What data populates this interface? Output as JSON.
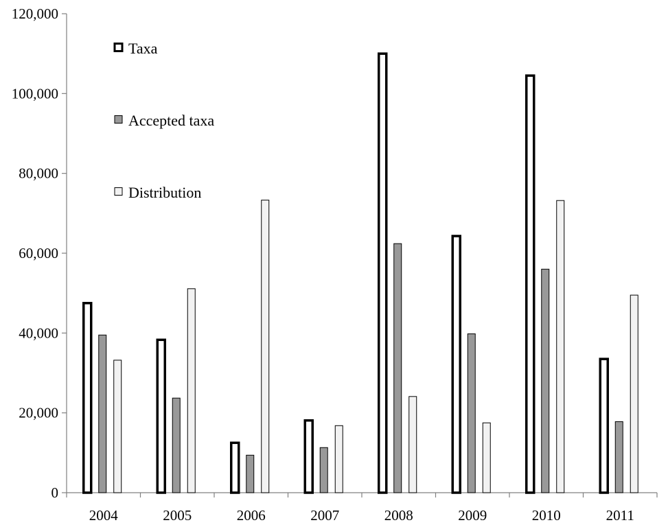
{
  "chart_data": {
    "type": "bar",
    "categories": [
      "2004",
      "2005",
      "2006",
      "2007",
      "2008",
      "2009",
      "2010",
      "2011"
    ],
    "series": [
      {
        "name": "Taxa",
        "values": [
          47500,
          38300,
          12500,
          18100,
          110000,
          64300,
          104500,
          33500
        ]
      },
      {
        "name": "Accepted taxa",
        "values": [
          39500,
          23700,
          9400,
          11300,
          62400,
          39800,
          56000,
          17800
        ]
      },
      {
        "name": "Distribution",
        "values": [
          33200,
          51100,
          73300,
          16800,
          24100,
          17500,
          73200,
          49500
        ]
      }
    ],
    "ylim": [
      0,
      120000
    ],
    "yticks": [
      0,
      20000,
      40000,
      60000,
      80000,
      100000,
      120000
    ],
    "ytick_labels": [
      "0",
      "20,000",
      "40,000",
      "60,000",
      "80,000",
      "100,000",
      "120,000"
    ],
    "grid": false,
    "legend_position": "top-left",
    "colors": {
      "Taxa": "#ffffff",
      "Accepted taxa": "#999999",
      "Distribution": "#f2f2f2"
    }
  }
}
